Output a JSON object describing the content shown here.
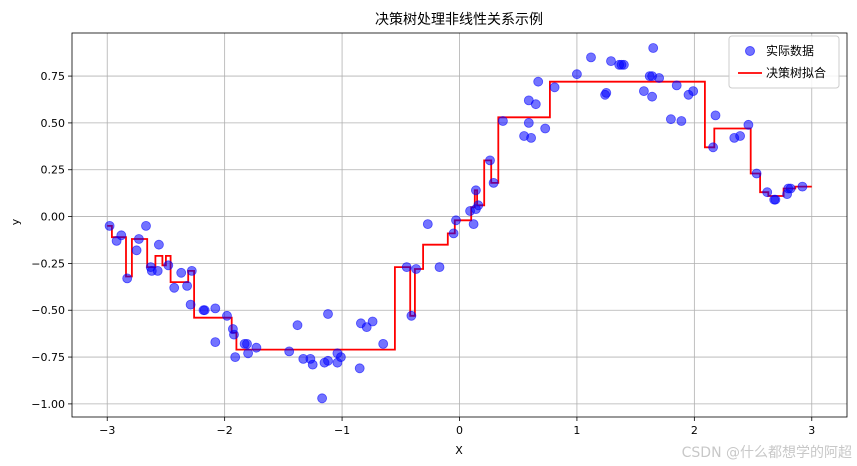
{
  "chart_data": {
    "type": "scatter",
    "title": "决策树处理非线性关系示例",
    "xlabel": "X",
    "ylabel": "y",
    "xlim": [
      -3.3,
      3.3
    ],
    "ylim": [
      -1.07,
      0.98
    ],
    "xticks": [
      -3,
      -2,
      -1,
      0,
      1,
      2,
      3
    ],
    "xtick_labels": [
      "−3",
      "−2",
      "−1",
      "0",
      "1",
      "2",
      "3"
    ],
    "yticks": [
      -1.0,
      -0.75,
      -0.5,
      -0.25,
      0.0,
      0.25,
      0.5,
      0.75
    ],
    "ytick_labels": [
      "−1.00",
      "−0.75",
      "−0.50",
      "−0.25",
      "0.00",
      "0.25",
      "0.50",
      "0.75"
    ],
    "grid": true,
    "legend_position": "top-right",
    "colors": {
      "points": "#0000ff",
      "line": "#ff0000"
    },
    "series": [
      {
        "name": "实际数据",
        "kind": "scatter",
        "points": [
          [
            -2.98,
            -0.05
          ],
          [
            -2.92,
            -0.13
          ],
          [
            -2.88,
            -0.1
          ],
          [
            -2.83,
            -0.33
          ],
          [
            -2.75,
            -0.18
          ],
          [
            -2.73,
            -0.12
          ],
          [
            -2.67,
            -0.05
          ],
          [
            -2.63,
            -0.27
          ],
          [
            -2.62,
            -0.29
          ],
          [
            -2.57,
            -0.29
          ],
          [
            -2.56,
            -0.15
          ],
          [
            -2.48,
            -0.26
          ],
          [
            -2.43,
            -0.38
          ],
          [
            -2.37,
            -0.3
          ],
          [
            -2.32,
            -0.37
          ],
          [
            -2.29,
            -0.47
          ],
          [
            -2.28,
            -0.29
          ],
          [
            -2.18,
            -0.5
          ],
          [
            -2.17,
            -0.5
          ],
          [
            -2.08,
            -0.49
          ],
          [
            -2.08,
            -0.67
          ],
          [
            -1.98,
            -0.53
          ],
          [
            -1.93,
            -0.6
          ],
          [
            -1.92,
            -0.63
          ],
          [
            -1.91,
            -0.75
          ],
          [
            -1.83,
            -0.68
          ],
          [
            -1.81,
            -0.68
          ],
          [
            -1.8,
            -0.73
          ],
          [
            -1.73,
            -0.7
          ],
          [
            -1.45,
            -0.72
          ],
          [
            -1.38,
            -0.58
          ],
          [
            -1.33,
            -0.76
          ],
          [
            -1.27,
            -0.76
          ],
          [
            -1.25,
            -0.79
          ],
          [
            -1.17,
            -0.97
          ],
          [
            -1.15,
            -0.78
          ],
          [
            -1.12,
            -0.52
          ],
          [
            -1.12,
            -0.77
          ],
          [
            -1.04,
            -0.73
          ],
          [
            -1.04,
            -0.78
          ],
          [
            -1.01,
            -0.75
          ],
          [
            -0.85,
            -0.81
          ],
          [
            -0.84,
            -0.57
          ],
          [
            -0.79,
            -0.59
          ],
          [
            -0.74,
            -0.56
          ],
          [
            -0.65,
            -0.68
          ],
          [
            -0.45,
            -0.27
          ],
          [
            -0.41,
            -0.53
          ],
          [
            -0.37,
            -0.28
          ],
          [
            -0.27,
            -0.04
          ],
          [
            -0.17,
            -0.27
          ],
          [
            -0.05,
            -0.09
          ],
          [
            -0.03,
            -0.02
          ],
          [
            0.09,
            0.03
          ],
          [
            0.12,
            -0.04
          ],
          [
            0.14,
            0.14
          ],
          [
            0.14,
            0.04
          ],
          [
            0.16,
            0.06
          ],
          [
            0.26,
            0.3
          ],
          [
            0.29,
            0.18
          ],
          [
            0.37,
            0.51
          ],
          [
            0.55,
            0.43
          ],
          [
            0.59,
            0.62
          ],
          [
            0.59,
            0.5
          ],
          [
            0.61,
            0.42
          ],
          [
            0.65,
            0.6
          ],
          [
            0.67,
            0.72
          ],
          [
            0.73,
            0.47
          ],
          [
            0.81,
            0.69
          ],
          [
            1.0,
            0.76
          ],
          [
            1.12,
            0.85
          ],
          [
            1.24,
            0.65
          ],
          [
            1.25,
            0.66
          ],
          [
            1.29,
            0.83
          ],
          [
            1.36,
            0.81
          ],
          [
            1.38,
            0.81
          ],
          [
            1.4,
            0.81
          ],
          [
            1.57,
            0.67
          ],
          [
            1.62,
            0.75
          ],
          [
            1.64,
            0.75
          ],
          [
            1.64,
            0.64
          ],
          [
            1.65,
            0.9
          ],
          [
            1.7,
            0.74
          ],
          [
            1.8,
            0.52
          ],
          [
            1.85,
            0.7
          ],
          [
            1.89,
            0.51
          ],
          [
            1.95,
            0.65
          ],
          [
            1.99,
            0.67
          ],
          [
            2.16,
            0.37
          ],
          [
            2.18,
            0.54
          ],
          [
            2.34,
            0.42
          ],
          [
            2.39,
            0.43
          ],
          [
            2.46,
            0.49
          ],
          [
            2.53,
            0.23
          ],
          [
            2.62,
            0.13
          ],
          [
            2.68,
            0.09
          ],
          [
            2.69,
            0.09
          ],
          [
            2.79,
            0.12
          ],
          [
            2.8,
            0.15
          ],
          [
            2.82,
            0.15
          ],
          [
            2.92,
            0.16
          ]
        ]
      },
      {
        "name": "决策树拟合",
        "kind": "step-line",
        "points": [
          [
            -3.0,
            -0.05
          ],
          [
            -2.96,
            -0.05
          ],
          [
            -2.96,
            -0.11
          ],
          [
            -2.84,
            -0.11
          ],
          [
            -2.84,
            -0.32
          ],
          [
            -2.79,
            -0.32
          ],
          [
            -2.79,
            -0.12
          ],
          [
            -2.66,
            -0.12
          ],
          [
            -2.66,
            -0.27
          ],
          [
            -2.59,
            -0.27
          ],
          [
            -2.59,
            -0.21
          ],
          [
            -2.53,
            -0.21
          ],
          [
            -2.53,
            -0.26
          ],
          [
            -2.5,
            -0.26
          ],
          [
            -2.5,
            -0.21
          ],
          [
            -2.46,
            -0.21
          ],
          [
            -2.46,
            -0.35
          ],
          [
            -2.31,
            -0.35
          ],
          [
            -2.31,
            -0.29
          ],
          [
            -2.26,
            -0.29
          ],
          [
            -2.26,
            -0.54
          ],
          [
            -1.94,
            -0.54
          ],
          [
            -1.94,
            -0.62
          ],
          [
            -1.9,
            -0.62
          ],
          [
            -1.9,
            -0.71
          ],
          [
            -0.55,
            -0.71
          ],
          [
            -0.55,
            -0.27
          ],
          [
            -0.42,
            -0.27
          ],
          [
            -0.42,
            -0.53
          ],
          [
            -0.38,
            -0.53
          ],
          [
            -0.38,
            -0.28
          ],
          [
            -0.31,
            -0.28
          ],
          [
            -0.31,
            -0.15
          ],
          [
            -0.1,
            -0.15
          ],
          [
            -0.1,
            -0.09
          ],
          [
            -0.04,
            -0.09
          ],
          [
            -0.04,
            -0.02
          ],
          [
            0.1,
            -0.02
          ],
          [
            0.1,
            0.05
          ],
          [
            0.13,
            0.05
          ],
          [
            0.13,
            0.14
          ],
          [
            0.15,
            0.14
          ],
          [
            0.15,
            0.06
          ],
          [
            0.21,
            0.06
          ],
          [
            0.21,
            0.3
          ],
          [
            0.27,
            0.3
          ],
          [
            0.27,
            0.18
          ],
          [
            0.33,
            0.18
          ],
          [
            0.33,
            0.53
          ],
          [
            0.77,
            0.53
          ],
          [
            0.77,
            0.72
          ],
          [
            2.09,
            0.72
          ],
          [
            2.09,
            0.37
          ],
          [
            2.17,
            0.37
          ],
          [
            2.17,
            0.47
          ],
          [
            2.48,
            0.47
          ],
          [
            2.48,
            0.23
          ],
          [
            2.56,
            0.23
          ],
          [
            2.56,
            0.13
          ],
          [
            2.63,
            0.13
          ],
          [
            2.63,
            0.11
          ],
          [
            2.76,
            0.11
          ],
          [
            2.76,
            0.15
          ],
          [
            2.86,
            0.15
          ],
          [
            2.86,
            0.16
          ],
          [
            3.0,
            0.16
          ]
        ]
      }
    ]
  },
  "watermark": "CSDN @什么都想学的阿超"
}
